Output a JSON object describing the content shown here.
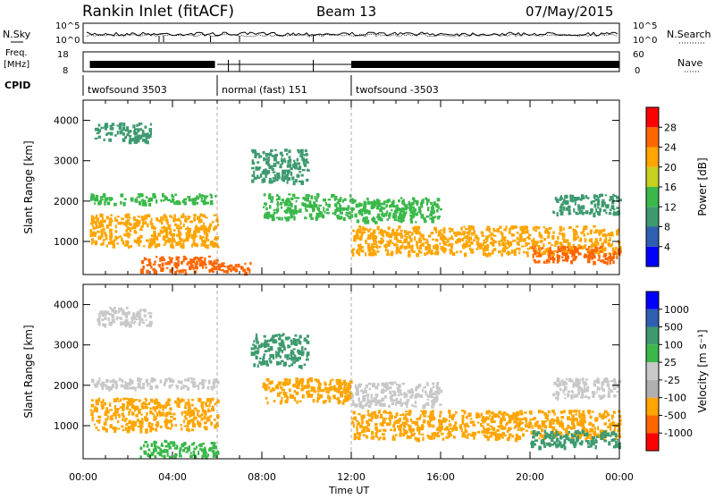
{
  "header": {
    "title": "Rankin Inlet (fitACF)",
    "beam": "Beam 13",
    "date": "07/May/2015"
  },
  "top_panels": {
    "nsky_label": "N.Sky",
    "nsky_ticks": [
      "10^5",
      "10^0"
    ],
    "nsearch_label": "N.Search",
    "nsearch_ticks": [
      "10^5",
      "10^0"
    ],
    "freq_label_1": "Freq.",
    "freq_label_2": "[MHz]",
    "freq_ticks": [
      "18",
      "8"
    ],
    "nave_label": "Nave",
    "nave_ticks": [
      "60",
      "0"
    ],
    "cpid_label": "CPID",
    "modes": [
      {
        "label": "twofsound 3503",
        "start_hour": 0.0
      },
      {
        "label": "normal (fast) 151",
        "start_hour": 6.0
      },
      {
        "label": "twofsound -3503",
        "start_hour": 12.0
      }
    ]
  },
  "x_axis": {
    "title": "Time UT",
    "range_hours": [
      0,
      24
    ],
    "tick_labels": [
      "00:00",
      "04:00",
      "08:00",
      "12:00",
      "16:00",
      "20:00",
      "00:00"
    ]
  },
  "chart_data": [
    {
      "type": "heatmap",
      "ylabel": "Slant Range [km]",
      "ylim": [
        180,
        4500
      ],
      "y_ticks": [
        1000,
        2000,
        3000,
        4000
      ],
      "colorbar_label": "Power [dB]",
      "colorbar_ticks": [
        "28",
        "24",
        "20",
        "16",
        "12",
        "8",
        "4"
      ],
      "colorbar_colors": [
        "#0000ff",
        "#2f5fb0",
        "#3d9a6f",
        "#3ab84a",
        "#c8d020",
        "#ffa500",
        "#ff6600",
        "#ff0000"
      ],
      "regions": [
        {
          "t0": 0.5,
          "t1": 3.0,
          "r0": 3500,
          "r1": 3950,
          "value": 10
        },
        {
          "t0": 0.3,
          "t1": 6.0,
          "r0": 1950,
          "r1": 2200,
          "value": 14
        },
        {
          "t0": 0.3,
          "t1": 6.0,
          "r0": 900,
          "r1": 1700,
          "value": 22
        },
        {
          "t0": 2.5,
          "t1": 6.0,
          "r0": 250,
          "r1": 650,
          "value": 26
        },
        {
          "t0": 6.0,
          "t1": 7.5,
          "r0": 250,
          "r1": 500,
          "value": 24
        },
        {
          "t0": 7.5,
          "t1": 10.0,
          "r0": 2500,
          "r1": 3300,
          "value": 8
        },
        {
          "t0": 8.0,
          "t1": 12.0,
          "r0": 1600,
          "r1": 2200,
          "value": 12
        },
        {
          "t0": 12.0,
          "t1": 16.0,
          "r0": 1500,
          "r1": 2100,
          "value": 14
        },
        {
          "t0": 12.0,
          "t1": 24.0,
          "r0": 700,
          "r1": 1400,
          "value": 20
        },
        {
          "t0": 20.0,
          "t1": 24.0,
          "r0": 500,
          "r1": 900,
          "value": 26
        },
        {
          "t0": 21.0,
          "t1": 24.0,
          "r0": 1700,
          "r1": 2200,
          "value": 10
        }
      ]
    },
    {
      "type": "heatmap",
      "ylabel": "Slant Range [km]",
      "ylim": [
        180,
        4500
      ],
      "y_ticks": [
        1000,
        2000,
        3000,
        4000
      ],
      "colorbar_label": "Velocity [m s⁻¹]",
      "colorbar_ticks": [
        "1000",
        "500",
        "100",
        "25",
        "-25",
        "-100",
        "-500",
        "-1000"
      ],
      "colorbar_colors": [
        "#ff0000",
        "#ff6600",
        "#ffa500",
        "#b0b0b0",
        "#c8c8c8",
        "#3ab84a",
        "#3d9a6f",
        "#2f5fb0",
        "#0000ff"
      ],
      "regions": [
        {
          "t0": 0.5,
          "t1": 3.0,
          "r0": 3500,
          "r1": 3950,
          "value": 0
        },
        {
          "t0": 0.3,
          "t1": 6.0,
          "r0": 1950,
          "r1": 2200,
          "value": 0
        },
        {
          "t0": 0.3,
          "t1": 6.0,
          "r0": 900,
          "r1": 1700,
          "value": -300
        },
        {
          "t0": 2.5,
          "t1": 6.0,
          "r0": 250,
          "r1": 650,
          "value": 50
        },
        {
          "t0": 7.5,
          "t1": 10.0,
          "r0": 2500,
          "r1": 3300,
          "value": 150
        },
        {
          "t0": 8.0,
          "t1": 12.0,
          "r0": 1600,
          "r1": 2200,
          "value": -200
        },
        {
          "t0": 12.0,
          "t1": 16.0,
          "r0": 1500,
          "r1": 2100,
          "value": 0
        },
        {
          "t0": 12.0,
          "t1": 24.0,
          "r0": 700,
          "r1": 1400,
          "value": -150
        },
        {
          "t0": 20.0,
          "t1": 24.0,
          "r0": 500,
          "r1": 900,
          "value": 300
        },
        {
          "t0": 21.0,
          "t1": 24.0,
          "r0": 1700,
          "r1": 2200,
          "value": 0
        }
      ]
    }
  ]
}
